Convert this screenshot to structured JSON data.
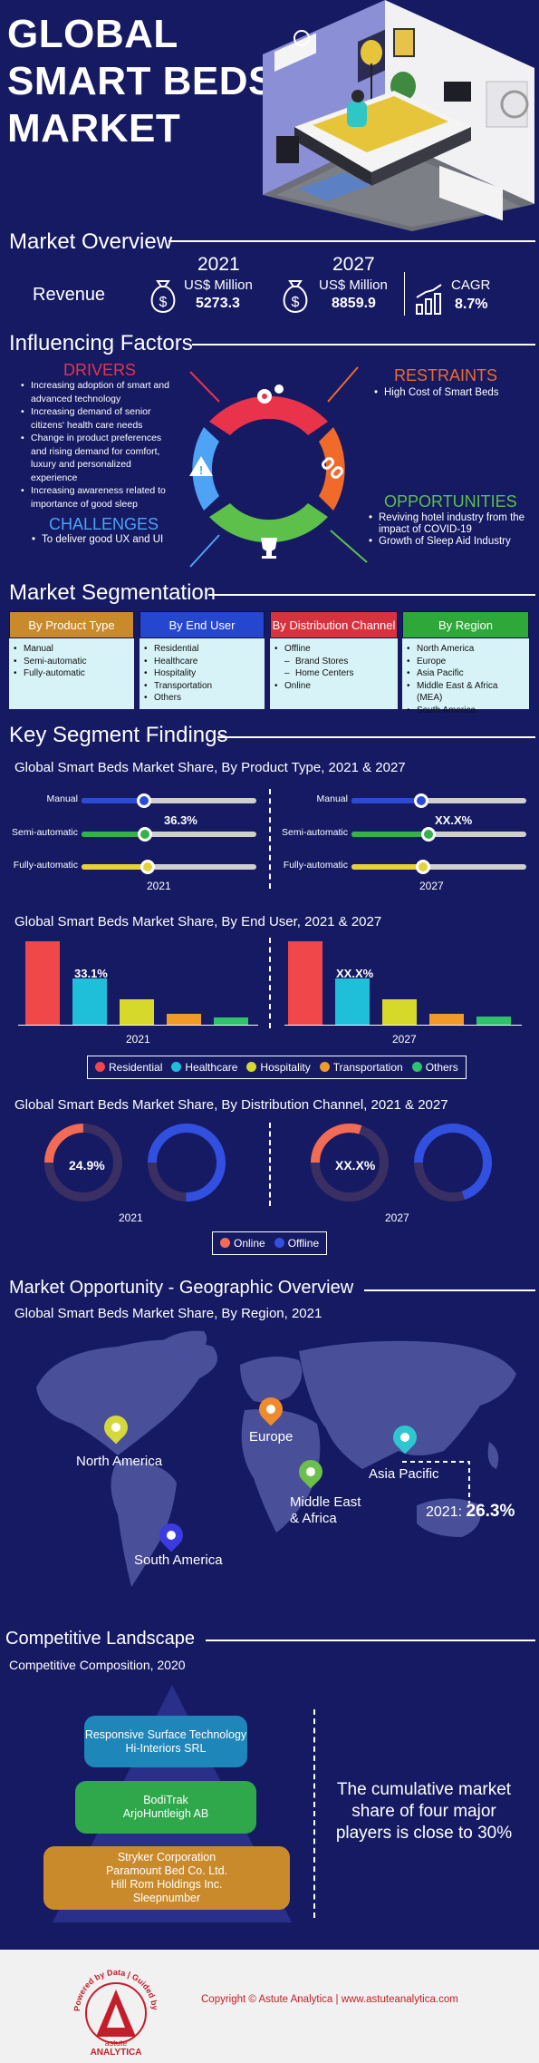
{
  "hero": {
    "title_line1": "GLOBAL",
    "title_line2": "SMART BEDS",
    "title_line3": "MARKET"
  },
  "overview": {
    "title": "Market Overview",
    "revenue_label": "Revenue",
    "y2021": {
      "year": "2021",
      "unit": "US$ Million",
      "value": "5273.3"
    },
    "y2027": {
      "year": "2027",
      "unit": "US$ Million",
      "value": "8859.9"
    },
    "cagr": {
      "label": "CAGR",
      "value": "8.7%"
    }
  },
  "factors": {
    "title": "Influencing Factors",
    "drivers": {
      "title": "DRIVERS",
      "items": [
        "Increasing adoption of smart and advanced technology",
        "Increasing demand of senior citizens' health care needs",
        "Change in product preferences and rising demand for comfort, luxury and personalized experience",
        "Increasing awareness related to importance of good sleep"
      ]
    },
    "restraints": {
      "title": "RESTRAINTS",
      "items": [
        "High Cost of Smart Beds"
      ]
    },
    "challenges": {
      "title": "CHALLENGES",
      "items": [
        "To deliver good UX and UI"
      ]
    },
    "opportunities": {
      "title": "OPPORTUNITIES",
      "items": [
        "Reviving hotel industry from the impact of COVID-19",
        "Growth of Sleep Aid Industry"
      ]
    },
    "colors": {
      "drivers": "#e8334a",
      "restraints": "#f06b2a",
      "challenges": "#4fa3f5",
      "opportunities": "#5cc04a"
    }
  },
  "segmentation": {
    "title": "Market Segmentation",
    "product": {
      "head": "By Product Type",
      "items": [
        "Manual",
        "Semi-automatic",
        "Fully-automatic"
      ]
    },
    "enduser": {
      "head": "By End User",
      "items": [
        "Residential",
        "Healthcare",
        "Hospitality",
        "Transportation",
        "Others"
      ]
    },
    "channel": {
      "head": "By Distribution Channel",
      "items": [
        "Offline",
        "Brand Stores",
        "Home Centers",
        "Online"
      ]
    },
    "region": {
      "head": "By Region",
      "items": [
        "North America",
        "Europe",
        "Asia Pacific",
        "Middle East & Africa (MEA)",
        "South America"
      ]
    }
  },
  "findings": {
    "title": "Key Segment Findings",
    "product_chart": {
      "title": "Global Smart Beds Market Share, By Product Type, 2021 & 2027",
      "labels": [
        "Manual",
        "Semi-automatic",
        "Fully-automatic"
      ],
      "year_a": "2021",
      "year_b": "2027",
      "value_a": "36.3%",
      "value_b": "XX.X%"
    },
    "enduser_chart": {
      "title": "Global Smart Beds Market Share, By End User, 2021 & 2027",
      "year_a": "2021",
      "year_b": "2027",
      "label_a": "33.1%",
      "label_b": "XX.X%",
      "legend": [
        "Residential",
        "Healthcare",
        "Hospitality",
        "Transportation",
        "Others"
      ]
    },
    "channel_chart": {
      "title": "Global Smart Beds Market Share, By Distribution Channel, 2021 & 2027",
      "year_a": "2021",
      "year_b": "2027",
      "label_a": "24.9%",
      "label_b": "XX.X%",
      "legend": [
        "Online",
        "Offline"
      ]
    }
  },
  "geo": {
    "title": "Market Opportunity - Geographic Overview",
    "subtitle": "Global Smart Beds Market Share, By Region, 2021",
    "regions": {
      "north_america": "North America",
      "europe": "Europe",
      "asia_pacific": "Asia Pacific",
      "mea_line1": "Middle East",
      "mea_line2": "& Africa",
      "south_america": "South America"
    },
    "callout_year": "2021:",
    "callout_value": "26.3%"
  },
  "competitive": {
    "title": "Competitive Landscape",
    "subtitle": "Competitive Composition, 2020",
    "tier1": [
      "Responsive Surface Technology",
      "Hi-Interiors SRL"
    ],
    "tier2": [
      "BodiTrak",
      "ArjoHuntleigh AB"
    ],
    "tier3": [
      "Stryker Corporation",
      "Paramount Bed Co. Ltd.",
      "Hill Rom Holdings Inc.",
      "Sleepnumber"
    ],
    "statement": "The cumulative market share of four major players is close to 30%"
  },
  "footer": {
    "logo_ring": "Powered by Data | Guided by Intelligence",
    "logo_name1": "astute",
    "logo_name2": "ANALYTICA",
    "copyright": "Copyright © Astute Analytica",
    "separator": "|",
    "url": "www.astuteanalytica.com"
  },
  "chart_data": [
    {
      "type": "bar",
      "title": "Global Smart Beds Market Share, By End User, 2021 & 2027",
      "categories": [
        "Residential",
        "Healthcare",
        "Hospitality",
        "Transportation",
        "Others"
      ],
      "series": [
        {
          "name": "2021",
          "values": [
            60,
            33.1,
            18,
            8,
            5
          ]
        },
        {
          "name": "2027",
          "values": [
            60,
            33,
            18,
            8,
            6
          ]
        }
      ],
      "ylim": [
        0,
        62
      ],
      "colors": [
        "#f0474a",
        "#1fbfd9",
        "#d7d92a",
        "#f09a2a",
        "#2ec26a"
      ]
    },
    {
      "type": "line",
      "title": "Global Smart Beds Market Share, By Product Type, 2021 & 2027",
      "categories": [
        "Manual",
        "Semi-automatic",
        "Fully-automatic"
      ],
      "series": [
        {
          "name": "2021",
          "values": [
            36,
            36.3,
            38
          ]
        },
        {
          "name": "2027",
          "values": [
            40,
            44,
            41
          ]
        }
      ],
      "colors": [
        "#2b4bd6",
        "#35b04a",
        "#e5d23a"
      ]
    },
    {
      "type": "pie",
      "title": "Global Smart Beds Market Share, By Distribution Channel, 2021 & 2027",
      "categories": [
        "Online",
        "Offline"
      ],
      "series": [
        {
          "name": "2021",
          "values": [
            24.9,
            75.1
          ]
        },
        {
          "name": "2027",
          "values": [
            30,
            70
          ]
        }
      ],
      "colors": [
        "#f26b55",
        "#3150e0"
      ]
    }
  ]
}
